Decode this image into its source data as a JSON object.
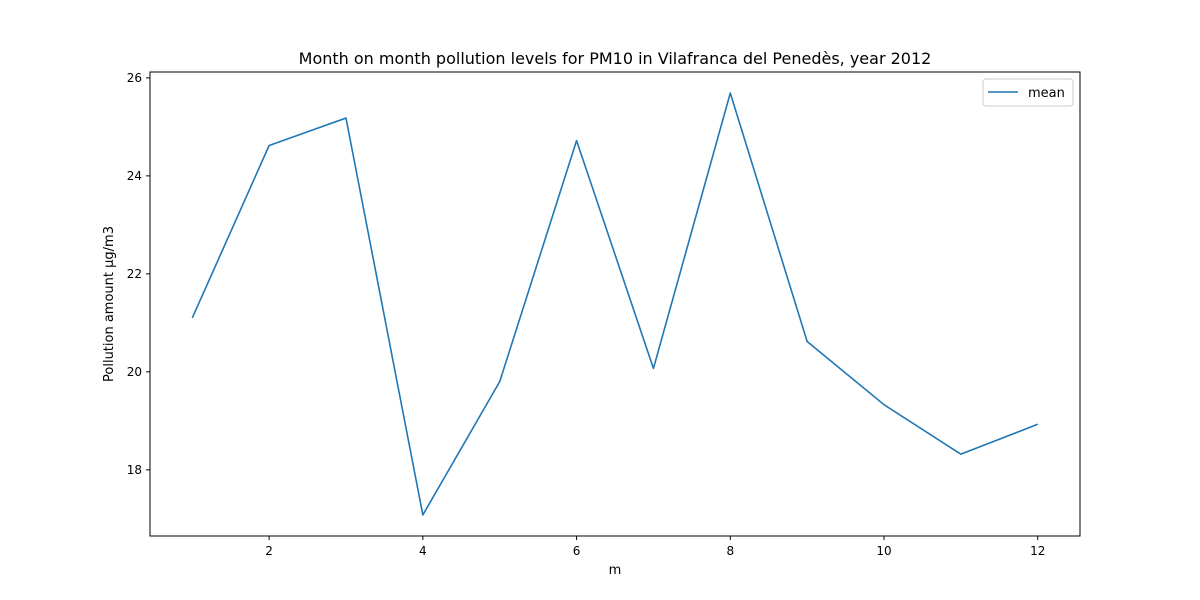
{
  "chart_data": {
    "type": "line",
    "title": "Month on month pollution levels for PM10 in Vilafranca del Penedès, year 2012",
    "xlabel": "m",
    "ylabel": "Pollution amount µg/m3",
    "x": [
      1,
      2,
      3,
      4,
      5,
      6,
      7,
      8,
      9,
      10,
      11,
      12
    ],
    "series": [
      {
        "name": "mean",
        "color": "#1f77b4",
        "values": [
          21.1,
          24.62,
          25.18,
          17.08,
          19.8,
          24.72,
          20.07,
          25.69,
          20.62,
          19.33,
          18.32,
          18.93
        ]
      }
    ],
    "xlim": [
      0.45,
      12.55
    ],
    "ylim": [
      16.65,
      26.12
    ],
    "xticks": [
      "2",
      "4",
      "6",
      "8",
      "10",
      "12"
    ],
    "yticks": [
      "18",
      "20",
      "22",
      "24",
      "26"
    ],
    "grid": false,
    "legend_position": "top-right"
  }
}
